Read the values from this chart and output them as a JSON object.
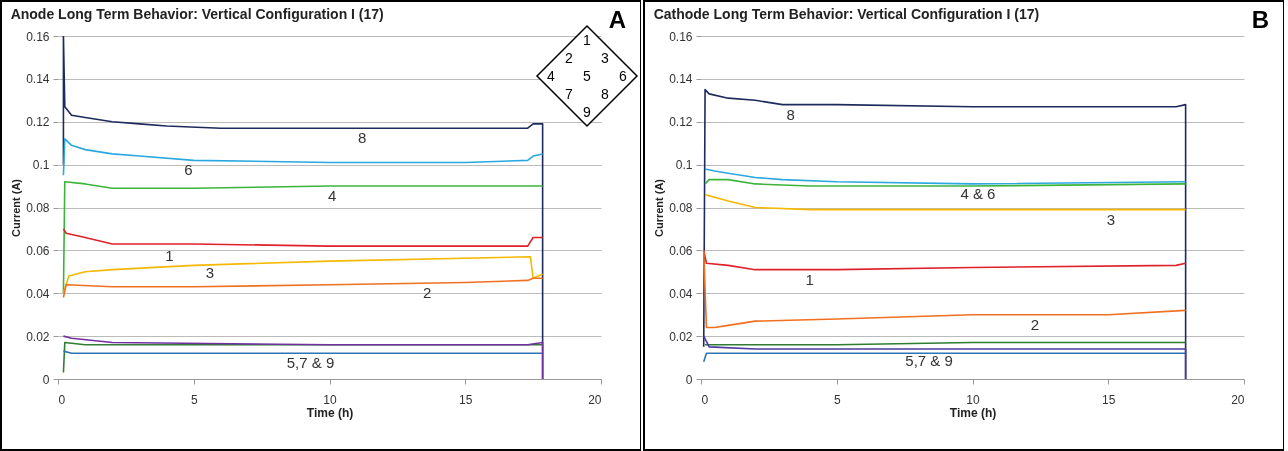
{
  "chart_data": [
    {
      "type": "line",
      "title": "Anode Long Term Behavior: Vertical Configuration I (17)",
      "xlabel": "Time (h)",
      "ylabel": "Current (A)",
      "xlim": [
        0,
        20
      ],
      "xticks": [
        0,
        5,
        10,
        15,
        20
      ],
      "ylim": [
        0,
        0.16
      ],
      "yticks": [
        0,
        0.02,
        0.04,
        0.06,
        0.08,
        0.1,
        0.12,
        0.14,
        0.16
      ],
      "grid": "y",
      "legend": false,
      "marker": "none",
      "series": [
        {
          "color": "#1c2a5c",
          "x": [
            0.2,
            0.2,
            0.25,
            0.5,
            1,
            2,
            3,
            4,
            6,
            10,
            17.3,
            17.5,
            17.85,
            17.85
          ],
          "values": [
            0.1,
            0.16,
            0.127,
            0.123,
            0.122,
            0.12,
            0.119,
            0.118,
            0.117,
            0.117,
            0.117,
            0.119,
            0.119,
            0
          ]
        },
        {
          "color": "#2aa8df",
          "x": [
            0.2,
            0.25,
            0.5,
            1,
            2,
            3,
            5,
            10,
            15,
            17.3,
            17.5,
            17.85
          ],
          "values": [
            0.095,
            0.112,
            0.109,
            0.107,
            0.105,
            0.104,
            0.102,
            0.101,
            0.101,
            0.102,
            0.104,
            0.105
          ]
        },
        {
          "color": "#3cb43c",
          "x": [
            0.2,
            0.25,
            1,
            2,
            5,
            10,
            17.85
          ],
          "values": [
            0.04,
            0.092,
            0.091,
            0.089,
            0.089,
            0.09,
            0.09
          ]
        },
        {
          "color": "#e0202a",
          "x": [
            0.2,
            0.3,
            1,
            2,
            5,
            10,
            17.3,
            17.5,
            17.85
          ],
          "values": [
            0.07,
            0.068,
            0.066,
            0.063,
            0.063,
            0.062,
            0.062,
            0.066,
            0.066
          ]
        },
        {
          "color": "#f5b800",
          "x": [
            0.2,
            0.4,
            1,
            2,
            5,
            10,
            17.4,
            17.5,
            17.85
          ],
          "values": [
            0.04,
            0.048,
            0.05,
            0.051,
            0.053,
            0.055,
            0.057,
            0.047,
            0.049
          ]
        },
        {
          "color": "#f07020",
          "x": [
            0.2,
            0.3,
            2,
            5,
            10,
            15,
            17.3,
            17.5,
            17.85
          ],
          "values": [
            0.038,
            0.044,
            0.043,
            0.043,
            0.044,
            0.045,
            0.046,
            0.047,
            0.047
          ]
        },
        {
          "color": "#2e7d32",
          "x": [
            0.2,
            0.25,
            1,
            5,
            10,
            17.85
          ],
          "values": [
            0.003,
            0.017,
            0.016,
            0.016,
            0.016,
            0.016
          ]
        },
        {
          "color": "#2e75b6",
          "x": [
            0.2,
            0.5,
            5,
            10,
            17.85
          ],
          "values": [
            0.013,
            0.012,
            0.012,
            0.012,
            0.012
          ]
        },
        {
          "color": "#7030a0",
          "x": [
            0.2,
            0.5,
            2,
            10,
            17.3,
            17.85,
            17.85
          ],
          "values": [
            0.02,
            0.019,
            0.017,
            0.016,
            0.016,
            0.017,
            0
          ]
        }
      ],
      "annotations": [
        "A",
        "1",
        "2",
        "3",
        "4",
        "5",
        "6",
        "7",
        "8",
        "9",
        {
          "text": "8",
          "x": 11.2,
          "y": 0.117
        },
        {
          "text": "6",
          "x": 4.8,
          "y": 0.102
        },
        {
          "text": "4",
          "x": 10.1,
          "y": 0.09
        },
        {
          "text": "1",
          "x": 4.1,
          "y": 0.062
        },
        {
          "text": "3",
          "x": 5.6,
          "y": 0.054
        },
        {
          "text": "2",
          "x": 13.6,
          "y": 0.045
        },
        {
          "text": "5,7 & 9",
          "x": 9.3,
          "y": 0.012
        }
      ]
    },
    {
      "type": "line",
      "title": "Cathode Long Term Behavior: Vertical Configuration I (17)",
      "xlabel": "Time (h)",
      "ylabel": "Current (A)",
      "xlim": [
        0,
        20
      ],
      "xticks": [
        0,
        5,
        10,
        15,
        20
      ],
      "ylim": [
        0,
        0.16
      ],
      "yticks": [
        0,
        0.02,
        0.04,
        0.06,
        0.08,
        0.1,
        0.12,
        0.14,
        0.16
      ],
      "grid": "y",
      "legend": false,
      "marker": "none",
      "series": [
        {
          "color": "#1c2a5c",
          "x": [
            0.1,
            0.15,
            0.3,
            1,
            2,
            3,
            5,
            10,
            17.5,
            17.85,
            17.85
          ],
          "values": [
            0.015,
            0.135,
            0.133,
            0.131,
            0.13,
            0.128,
            0.128,
            0.127,
            0.127,
            0.128,
            0
          ]
        },
        {
          "color": "#2aa8df",
          "x": [
            0.15,
            0.5,
            1,
            2,
            3,
            5,
            10,
            17.85
          ],
          "values": [
            0.098,
            0.097,
            0.096,
            0.094,
            0.093,
            0.092,
            0.091,
            0.092
          ]
        },
        {
          "color": "#3cb43c",
          "x": [
            0.15,
            0.3,
            1,
            2,
            4,
            10,
            17.85
          ],
          "values": [
            0.091,
            0.093,
            0.093,
            0.091,
            0.09,
            0.09,
            0.091
          ]
        },
        {
          "color": "#f5b800",
          "x": [
            0.15,
            1,
            2,
            4,
            10,
            17.85
          ],
          "values": [
            0.086,
            0.083,
            0.08,
            0.079,
            0.079,
            0.079
          ]
        },
        {
          "color": "#e0202a",
          "x": [
            0.1,
            0.2,
            1,
            2,
            5,
            10,
            17.5,
            17.85
          ],
          "values": [
            0.06,
            0.054,
            0.053,
            0.051,
            0.051,
            0.052,
            0.053,
            0.054
          ]
        },
        {
          "color": "#f07020",
          "x": [
            0.1,
            0.2,
            0.5,
            1,
            2,
            5,
            10,
            15,
            17.85
          ],
          "values": [
            0.06,
            0.024,
            0.024,
            0.025,
            0.027,
            0.028,
            0.03,
            0.03,
            0.032
          ]
        },
        {
          "color": "#2e7d32",
          "x": [
            0.15,
            1,
            5,
            10,
            17.85
          ],
          "values": [
            0.016,
            0.016,
            0.016,
            0.017,
            0.017
          ]
        },
        {
          "color": "#2e75b6",
          "x": [
            0.1,
            0.2,
            5,
            17.85
          ],
          "values": [
            0.008,
            0.012,
            0.012,
            0.012
          ]
        },
        {
          "color": "#4b3aa0",
          "x": [
            0.1,
            0.3,
            2,
            10,
            17.85,
            17.85
          ],
          "values": [
            0.02,
            0.015,
            0.014,
            0.014,
            0.014,
            0
          ]
        }
      ],
      "annotations": [
        "B",
        {
          "text": "8",
          "x": 3.3,
          "y": 0.128
        },
        {
          "text": "4 & 6",
          "x": 10.2,
          "y": 0.091
        },
        {
          "text": "3",
          "x": 15.1,
          "y": 0.079
        },
        {
          "text": "1",
          "x": 4.0,
          "y": 0.051
        },
        {
          "text": "2",
          "x": 12.3,
          "y": 0.03
        },
        {
          "text": "5,7 & 9",
          "x": 8.4,
          "y": 0.013
        }
      ]
    }
  ]
}
